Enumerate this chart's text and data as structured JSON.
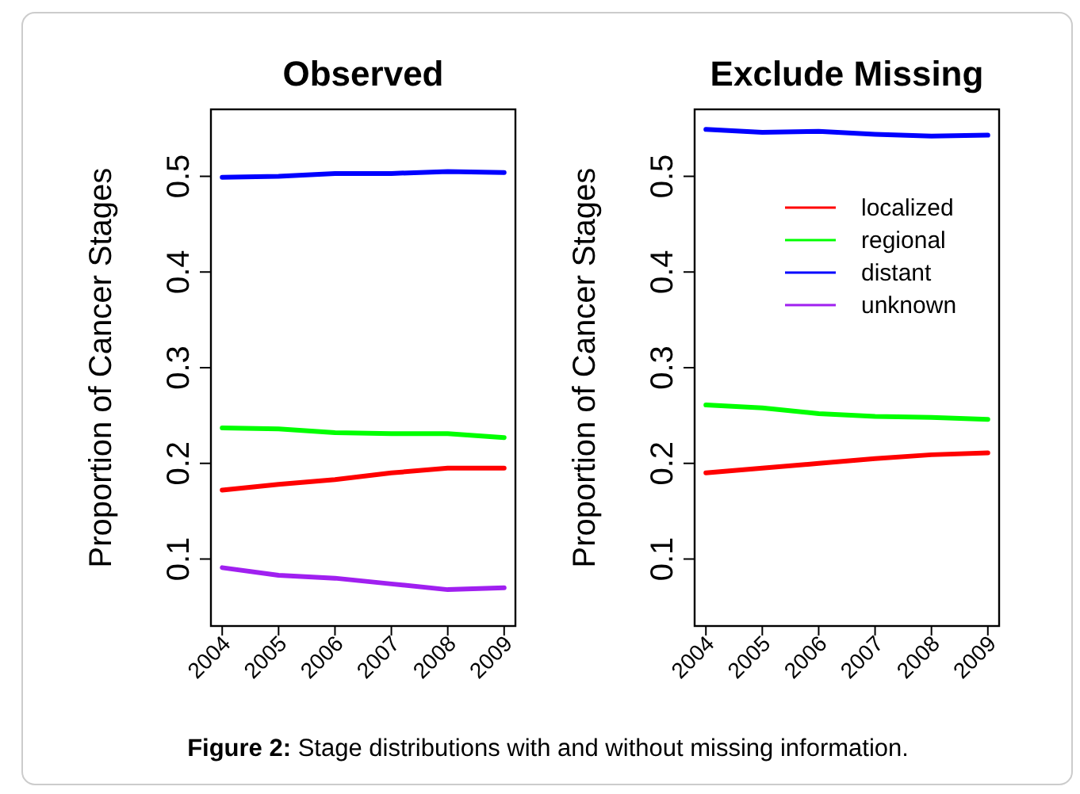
{
  "chart_data": [
    {
      "type": "line",
      "title": "Observed",
      "ylabel": "Proportion of Cancer Stages",
      "x": [
        2004,
        2005,
        2006,
        2007,
        2008,
        2009
      ],
      "xlim": [
        2003.8,
        2009.2
      ],
      "xticks": [
        2004,
        2005,
        2006,
        2007,
        2008,
        2009
      ],
      "ylim": [
        0.03,
        0.57
      ],
      "yticks": [
        0.1,
        0.2,
        0.3,
        0.4,
        0.5
      ],
      "grid": false,
      "legend": false,
      "marker": "none",
      "line_style": "solid",
      "series": [
        {
          "color": "#ff0000",
          "values": [
            0.172,
            0.178,
            0.183,
            0.19,
            0.195,
            0.195
          ]
        },
        {
          "color": "#00ff00",
          "values": [
            0.237,
            0.236,
            0.232,
            0.231,
            0.231,
            0.227
          ]
        },
        {
          "color": "#0000ff",
          "values": [
            0.499,
            0.5,
            0.503,
            0.503,
            0.505,
            0.504
          ]
        },
        {
          "color": "#a020f0",
          "values": [
            0.091,
            0.083,
            0.08,
            0.074,
            0.068,
            0.07
          ]
        }
      ],
      "annotations": [
        "Figure 2: Stage distributions with and without missing information."
      ]
    },
    {
      "type": "line",
      "title": "Exclude Missing",
      "ylabel": "Proportion of Cancer Stages",
      "x": [
        2004,
        2005,
        2006,
        2007,
        2008,
        2009
      ],
      "xlim": [
        2003.8,
        2009.2
      ],
      "xticks": [
        2004,
        2005,
        2006,
        2007,
        2008,
        2009
      ],
      "ylim": [
        0.03,
        0.57
      ],
      "yticks": [
        0.1,
        0.2,
        0.3,
        0.4,
        0.5
      ],
      "grid": false,
      "legend": "top right",
      "marker": "none",
      "line_style": "solid",
      "series": [
        {
          "name": "localized",
          "color": "#ff0000",
          "values": [
            0.19,
            0.195,
            0.2,
            0.205,
            0.209,
            0.211
          ]
        },
        {
          "name": "regional",
          "color": "#00ff00",
          "values": [
            0.261,
            0.258,
            0.252,
            0.249,
            0.248,
            0.246
          ]
        },
        {
          "name": "distant",
          "color": "#0000ff",
          "values": [
            0.549,
            0.546,
            0.547,
            0.544,
            0.542,
            0.543
          ]
        },
        {
          "name": "unknown",
          "color": "#a020f0",
          "values": [
            null,
            null,
            null,
            null,
            null,
            null
          ]
        }
      ]
    }
  ]
}
